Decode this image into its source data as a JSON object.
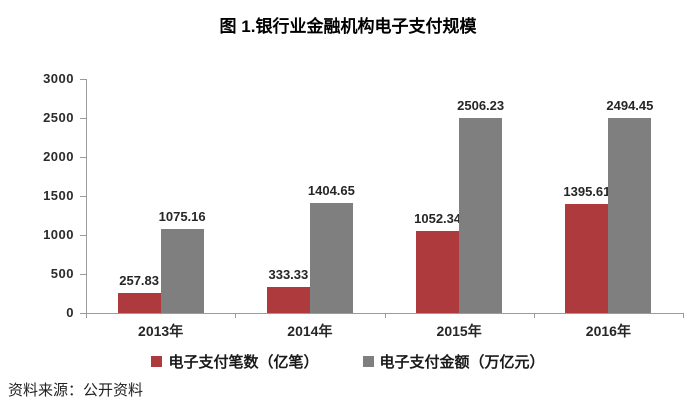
{
  "page": {
    "title": "图 1.银行业金融机构电子支付规模",
    "source_note": "资料来源：公开资料"
  },
  "chart_data": {
    "type": "bar",
    "title": "图 1.银行业金融机构电子支付规模",
    "categories": [
      "2013年",
      "2014年",
      "2015年",
      "2016年"
    ],
    "series": [
      {
        "name": "电子支付笔数（亿笔）",
        "color": "#ae3a3e",
        "values": [
          257.83,
          333.33,
          1052.34,
          1395.61
        ]
      },
      {
        "name": "电子支付金额（万亿元）",
        "color": "#7f7f7f",
        "values": [
          1075.16,
          1404.65,
          2506.23,
          2494.45
        ]
      }
    ],
    "ylim": [
      0,
      3000
    ],
    "yticks": [
      0,
      500,
      1000,
      1500,
      2000,
      2500,
      3000
    ],
    "grid": false,
    "legend_position": "bottom",
    "data_labels": true,
    "xlabel": "",
    "ylabel": ""
  },
  "colors": {
    "axis": "#9b9b9b",
    "bar_red": "#ae3a3e",
    "bar_gray": "#7f7f7f",
    "text": "#262626",
    "background": "#ffffff"
  }
}
